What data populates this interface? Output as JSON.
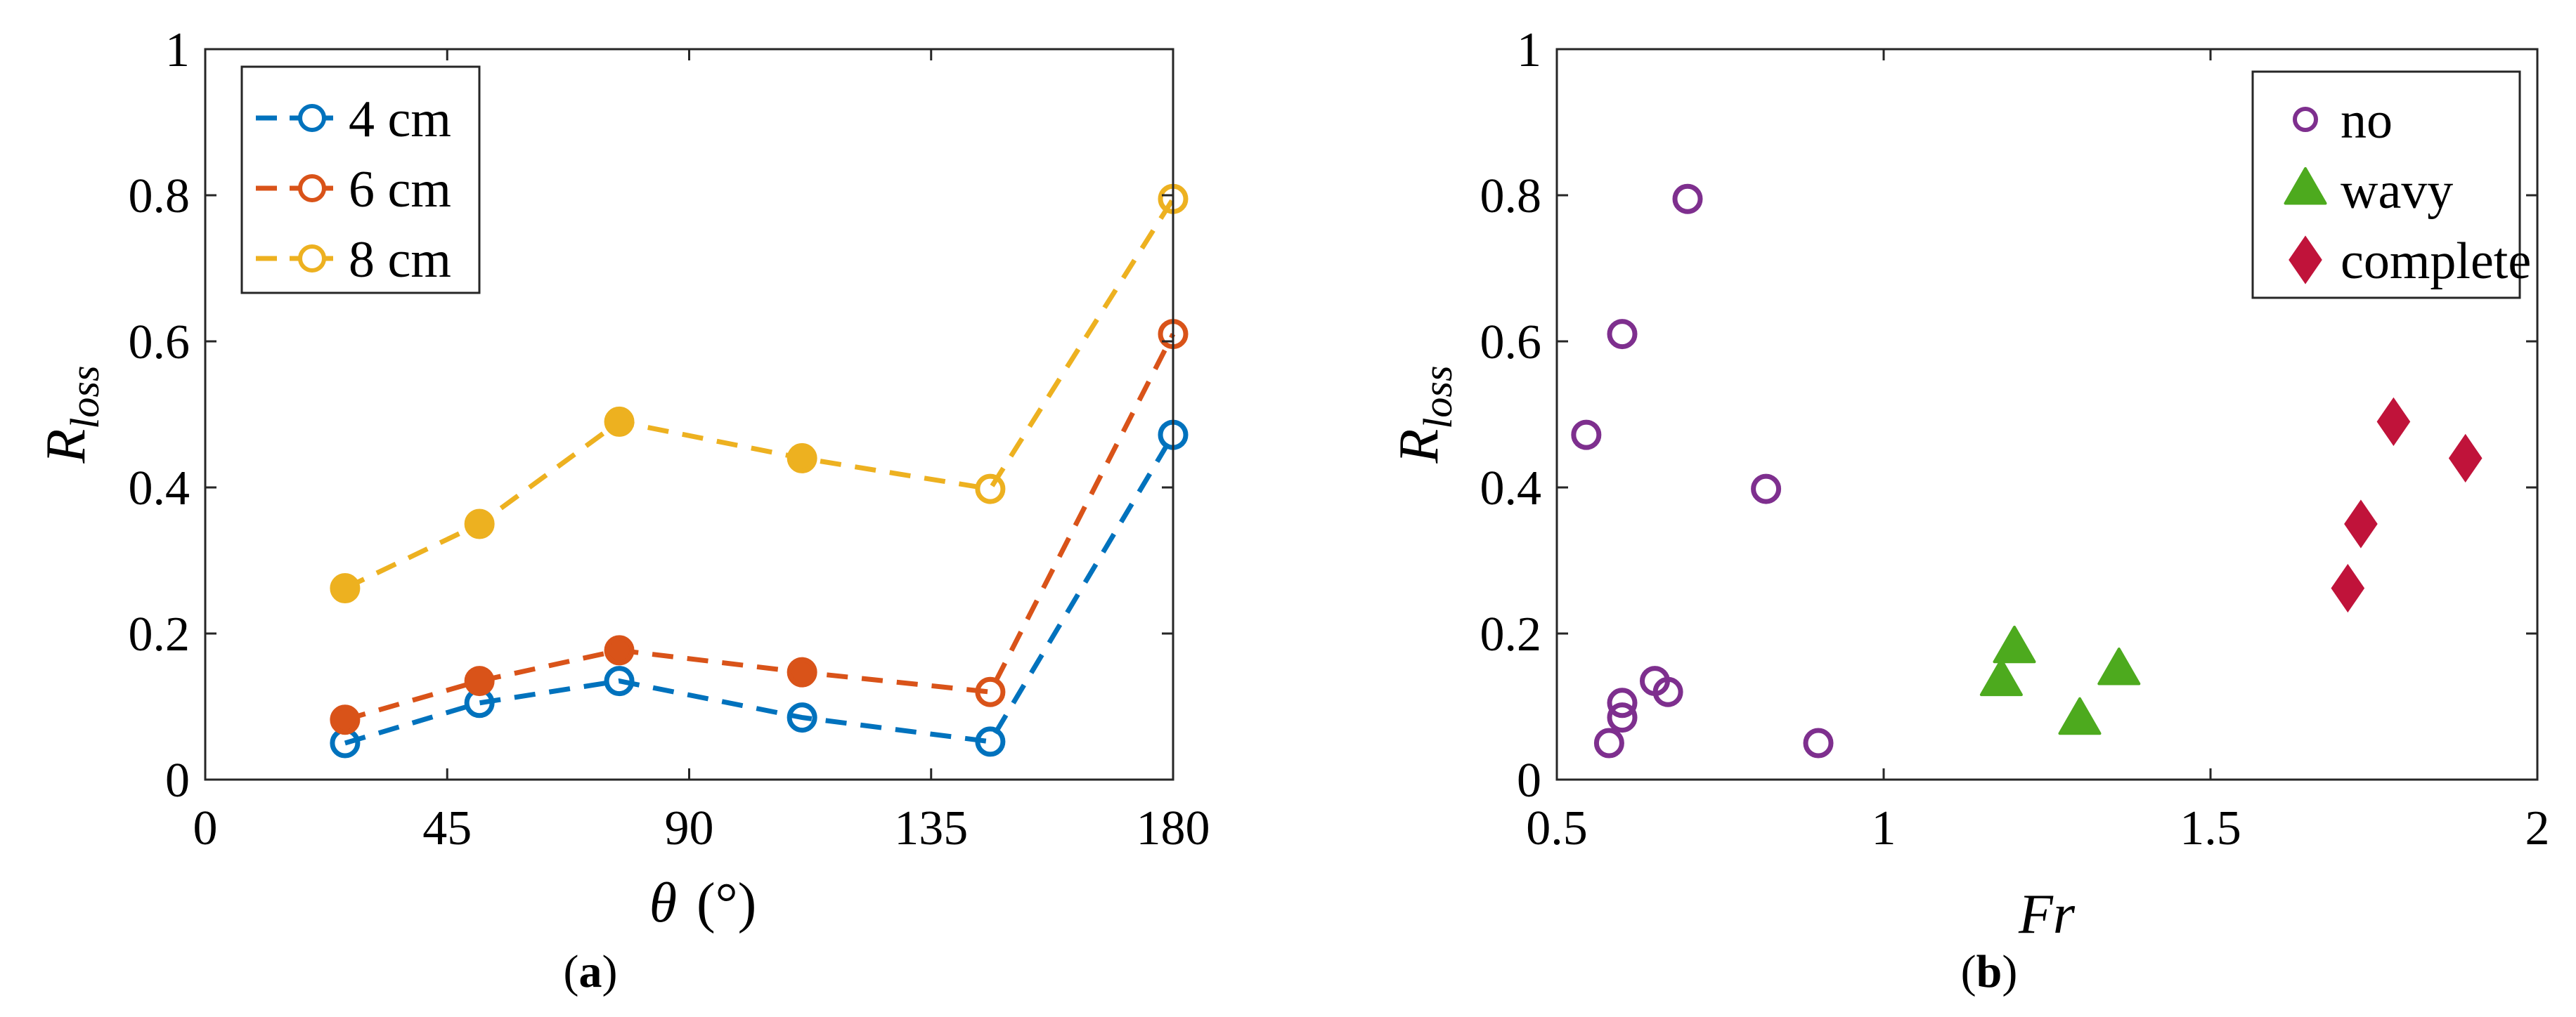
{
  "chart_data": [
    {
      "panel_label": "(a)",
      "type": "line",
      "xlabel": "θ (°)",
      "ylabel": "R_loss",
      "xlim": [
        0,
        180
      ],
      "ylim": [
        0,
        1
      ],
      "xticks": [
        0,
        45,
        90,
        135,
        180
      ],
      "yticks": [
        0,
        0.2,
        0.4,
        0.6,
        0.8,
        1
      ],
      "xtick_labels": [
        "0",
        "45",
        "90",
        "135",
        "180"
      ],
      "ytick_labels": [
        "0",
        "0.2",
        "0.4",
        "0.6",
        "0.8",
        "1"
      ],
      "legend_position": "top-left",
      "grid": false,
      "series": [
        {
          "name": "4 cm",
          "color": "#0072BD",
          "x": [
            26,
            51,
            77,
            111,
            146,
            180
          ],
          "y": [
            0.05,
            0.105,
            0.135,
            0.085,
            0.052,
            0.472
          ],
          "filled": [
            false,
            false,
            false,
            false,
            false,
            false
          ]
        },
        {
          "name": "6 cm",
          "color": "#D95319",
          "x": [
            26,
            51,
            77,
            111,
            146,
            180
          ],
          "y": [
            0.082,
            0.135,
            0.177,
            0.147,
            0.12,
            0.61
          ],
          "filled": [
            true,
            true,
            true,
            true,
            false,
            false
          ]
        },
        {
          "name": "8 cm",
          "color": "#EDB120",
          "x": [
            26,
            51,
            77,
            111,
            146,
            180
          ],
          "y": [
            0.262,
            0.35,
            0.49,
            0.44,
            0.398,
            0.795
          ],
          "filled": [
            true,
            true,
            true,
            true,
            false,
            false
          ]
        }
      ]
    },
    {
      "panel_label": "(b)",
      "type": "scatter",
      "xlabel": "Fr",
      "ylabel": "R_loss",
      "xlim": [
        0.5,
        2
      ],
      "ylim": [
        0,
        1
      ],
      "xticks": [
        0.5,
        1,
        1.5,
        2
      ],
      "yticks": [
        0,
        0.2,
        0.4,
        0.6,
        0.8,
        1
      ],
      "xtick_labels": [
        "0.5",
        "1",
        "1.5",
        "2"
      ],
      "ytick_labels": [
        "0",
        "0.2",
        "0.4",
        "0.6",
        "0.8",
        "1"
      ],
      "legend_position": "top-right",
      "grid": false,
      "series": [
        {
          "name": "no",
          "color": "#7E2F8E",
          "marker": "circle-open",
          "x": [
            0.545,
            0.58,
            0.6,
            0.6,
            0.6,
            0.65,
            0.67,
            0.7,
            0.82,
            0.9
          ],
          "y": [
            0.472,
            0.05,
            0.61,
            0.085,
            0.105,
            0.135,
            0.12,
            0.795,
            0.398,
            0.05
          ]
        },
        {
          "name": "wavy",
          "color": "#4DAA1E",
          "marker": "triangle-filled",
          "x": [
            1.18,
            1.2,
            1.3,
            1.36
          ],
          "y": [
            0.135,
            0.18,
            0.082,
            0.15
          ]
        },
        {
          "name": "complete",
          "color": "#C0133A",
          "marker": "diamond-filled",
          "x": [
            1.71,
            1.73,
            1.78,
            1.89
          ],
          "y": [
            0.262,
            0.35,
            0.49,
            0.44
          ]
        }
      ]
    }
  ]
}
